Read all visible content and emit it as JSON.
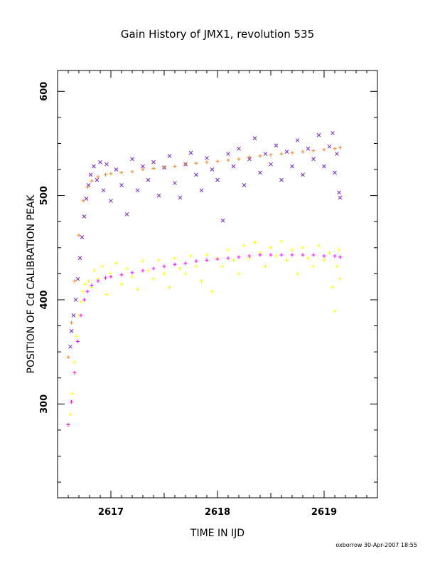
{
  "chart_data": {
    "type": "scatter",
    "title": "Gain History of JMX1, revolution 535",
    "xlabel": "TIME IN IJD",
    "ylabel": "POSITION OF Cd CALIBRATION PEAK",
    "xlim": [
      2616.5,
      2619.5
    ],
    "ylim": [
      210,
      620
    ],
    "x_ticks": [
      2617,
      2618,
      2619
    ],
    "x_tick_labels": [
      "2617",
      "2618",
      "2619"
    ],
    "y_ticks": [
      300,
      400,
      500,
      600
    ],
    "y_tick_labels": [
      "300",
      "400",
      "500",
      "600"
    ],
    "grid": false,
    "legend": "none",
    "series": [
      {
        "marker": "x",
        "color": "#7b22c8",
        "points": [
          [
            2616.62,
            355
          ],
          [
            2616.63,
            370
          ],
          [
            2616.65,
            385
          ],
          [
            2616.67,
            400
          ],
          [
            2616.69,
            420
          ],
          [
            2616.71,
            440
          ],
          [
            2616.73,
            460
          ],
          [
            2616.75,
            480
          ],
          [
            2616.77,
            497
          ],
          [
            2616.79,
            510
          ],
          [
            2616.81,
            520
          ],
          [
            2616.84,
            528
          ],
          [
            2616.87,
            515
          ],
          [
            2616.9,
            532
          ],
          [
            2616.93,
            505
          ],
          [
            2616.96,
            530
          ],
          [
            2617.0,
            495
          ],
          [
            2617.05,
            525
          ],
          [
            2617.1,
            510
          ],
          [
            2617.15,
            482
          ],
          [
            2617.2,
            535
          ],
          [
            2617.25,
            505
          ],
          [
            2617.3,
            528
          ],
          [
            2617.35,
            515
          ],
          [
            2617.4,
            532
          ],
          [
            2617.45,
            500
          ],
          [
            2617.5,
            527
          ],
          [
            2617.55,
            538
          ],
          [
            2617.6,
            512
          ],
          [
            2617.65,
            498
          ],
          [
            2617.7,
            530
          ],
          [
            2617.75,
            541
          ],
          [
            2617.8,
            520
          ],
          [
            2617.85,
            505
          ],
          [
            2617.9,
            536
          ],
          [
            2617.95,
            525
          ],
          [
            2618.0,
            515
          ],
          [
            2618.05,
            476
          ],
          [
            2618.1,
            540
          ],
          [
            2618.15,
            528
          ],
          [
            2618.2,
            545
          ],
          [
            2618.25,
            510
          ],
          [
            2618.3,
            535
          ],
          [
            2618.35,
            555
          ],
          [
            2618.4,
            522
          ],
          [
            2618.45,
            540
          ],
          [
            2618.5,
            530
          ],
          [
            2618.55,
            548
          ],
          [
            2618.6,
            515
          ],
          [
            2618.65,
            542
          ],
          [
            2618.7,
            528
          ],
          [
            2618.75,
            553
          ],
          [
            2618.8,
            520
          ],
          [
            2618.85,
            545
          ],
          [
            2618.9,
            535
          ],
          [
            2618.95,
            558
          ],
          [
            2619.0,
            528
          ],
          [
            2619.05,
            547
          ],
          [
            2619.08,
            560
          ],
          [
            2619.1,
            522
          ],
          [
            2619.12,
            540
          ],
          [
            2619.14,
            503
          ],
          [
            2619.15,
            498
          ]
        ]
      },
      {
        "marker": "+",
        "color": "#ffff00",
        "points": [
          [
            2616.62,
            290
          ],
          [
            2616.64,
            310
          ],
          [
            2616.66,
            340
          ],
          [
            2616.68,
            365
          ],
          [
            2616.7,
            385
          ],
          [
            2616.72,
            398
          ],
          [
            2616.74,
            408
          ],
          [
            2616.76,
            415
          ],
          [
            2616.79,
            418
          ],
          [
            2616.82,
            412
          ],
          [
            2616.85,
            428
          ],
          [
            2616.88,
            420
          ],
          [
            2616.92,
            432
          ],
          [
            2616.96,
            405
          ],
          [
            2617.0,
            425
          ],
          [
            2617.05,
            435
          ],
          [
            2617.1,
            415
          ],
          [
            2617.15,
            430
          ],
          [
            2617.2,
            422
          ],
          [
            2617.25,
            410
          ],
          [
            2617.3,
            437
          ],
          [
            2617.35,
            428
          ],
          [
            2617.4,
            420
          ],
          [
            2617.45,
            438
          ],
          [
            2617.5,
            425
          ],
          [
            2617.55,
            412
          ],
          [
            2617.6,
            440
          ],
          [
            2617.65,
            430
          ],
          [
            2617.7,
            425
          ],
          [
            2617.75,
            442
          ],
          [
            2617.8,
            432
          ],
          [
            2617.85,
            418
          ],
          [
            2617.9,
            443
          ],
          [
            2617.95,
            408
          ],
          [
            2618.0,
            440
          ],
          [
            2618.05,
            432
          ],
          [
            2618.1,
            448
          ],
          [
            2618.15,
            438
          ],
          [
            2618.2,
            425
          ],
          [
            2618.25,
            452
          ],
          [
            2618.3,
            440
          ],
          [
            2618.35,
            455
          ],
          [
            2618.4,
            445
          ],
          [
            2618.45,
            432
          ],
          [
            2618.5,
            450
          ],
          [
            2618.55,
            442
          ],
          [
            2618.6,
            456
          ],
          [
            2618.65,
            438
          ],
          [
            2618.7,
            448
          ],
          [
            2618.75,
            425
          ],
          [
            2618.8,
            450
          ],
          [
            2618.85,
            440
          ],
          [
            2618.9,
            432
          ],
          [
            2618.95,
            452
          ],
          [
            2619.0,
            438
          ],
          [
            2619.05,
            445
          ],
          [
            2619.08,
            412
          ],
          [
            2619.1,
            389
          ],
          [
            2619.12,
            432
          ],
          [
            2619.14,
            448
          ],
          [
            2619.15,
            420
          ]
        ]
      },
      {
        "marker": "+",
        "color": "#f5821f",
        "points": [
          [
            2616.6,
            345
          ],
          [
            2616.63,
            378
          ],
          [
            2616.66,
            418
          ],
          [
            2616.7,
            462
          ],
          [
            2616.74,
            495
          ],
          [
            2616.78,
            508
          ],
          [
            2616.82,
            514
          ],
          [
            2616.88,
            518
          ],
          [
            2616.95,
            520
          ],
          [
            2617.0,
            521
          ],
          [
            2617.1,
            522
          ],
          [
            2617.2,
            523
          ],
          [
            2617.3,
            525
          ],
          [
            2617.4,
            526
          ],
          [
            2617.5,
            527
          ],
          [
            2617.6,
            528
          ],
          [
            2617.7,
            530
          ],
          [
            2617.8,
            531
          ],
          [
            2617.9,
            532
          ],
          [
            2618.0,
            533
          ],
          [
            2618.1,
            534
          ],
          [
            2618.2,
            535
          ],
          [
            2618.3,
            537
          ],
          [
            2618.4,
            538
          ],
          [
            2618.5,
            539
          ],
          [
            2618.6,
            540
          ],
          [
            2618.7,
            541
          ],
          [
            2618.8,
            542
          ],
          [
            2618.9,
            543
          ],
          [
            2619.0,
            544
          ],
          [
            2619.1,
            545
          ],
          [
            2619.15,
            546
          ]
        ]
      },
      {
        "marker": "+",
        "color": "#ff00ff",
        "points": [
          [
            2616.6,
            280
          ],
          [
            2616.63,
            302
          ],
          [
            2616.66,
            330
          ],
          [
            2616.69,
            360
          ],
          [
            2616.72,
            385
          ],
          [
            2616.75,
            400
          ],
          [
            2616.78,
            408
          ],
          [
            2616.82,
            414
          ],
          [
            2616.88,
            418
          ],
          [
            2616.95,
            421
          ],
          [
            2617.0,
            422
          ],
          [
            2617.1,
            424
          ],
          [
            2617.2,
            426
          ],
          [
            2617.3,
            428
          ],
          [
            2617.4,
            430
          ],
          [
            2617.5,
            432
          ],
          [
            2617.6,
            434
          ],
          [
            2617.7,
            435
          ],
          [
            2617.8,
            437
          ],
          [
            2617.9,
            438
          ],
          [
            2618.0,
            439
          ],
          [
            2618.1,
            440
          ],
          [
            2618.2,
            441
          ],
          [
            2618.3,
            442
          ],
          [
            2618.4,
            443
          ],
          [
            2618.5,
            443
          ],
          [
            2618.6,
            443
          ],
          [
            2618.7,
            443
          ],
          [
            2618.8,
            443
          ],
          [
            2618.9,
            443
          ],
          [
            2619.0,
            442
          ],
          [
            2619.1,
            442
          ],
          [
            2619.15,
            441
          ]
        ]
      }
    ]
  },
  "footer": {
    "credit": "oxborrow 30-Apr-2007 18:55"
  }
}
